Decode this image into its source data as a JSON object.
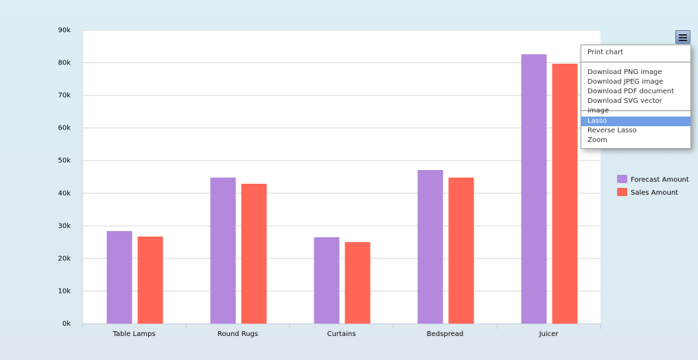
{
  "chart_data": {
    "type": "bar",
    "categories": [
      "Table Lamps",
      "Round Rugs",
      "Curtains",
      "Bedspread",
      "Juicer"
    ],
    "series": [
      {
        "name": "Forecast Amount",
        "color": "#b388dd",
        "values": [
          28400,
          44800,
          26500,
          47100,
          82600
        ]
      },
      {
        "name": "Sales Amount",
        "color": "#ff6655",
        "values": [
          26700,
          42900,
          25000,
          44800,
          79700
        ]
      }
    ],
    "ylim": [
      0,
      90000
    ],
    "yticks": [
      {
        "value": 0,
        "label": "0k"
      },
      {
        "value": 10000,
        "label": "10k"
      },
      {
        "value": 20000,
        "label": "20k"
      },
      {
        "value": 30000,
        "label": "30k"
      },
      {
        "value": 40000,
        "label": "40k"
      },
      {
        "value": 50000,
        "label": "50k"
      },
      {
        "value": 60000,
        "label": "60k"
      },
      {
        "value": 70000,
        "label": "70k"
      },
      {
        "value": 80000,
        "label": "80k"
      },
      {
        "value": 90000,
        "label": "90k"
      }
    ],
    "grid": true
  },
  "menu": {
    "items": [
      "Print chart",
      "Download PNG image",
      "Download JPEG image",
      "Download PDF document",
      "Download SVG vector image",
      "Lasso",
      "Reverse Lasso",
      "Zoom"
    ]
  }
}
